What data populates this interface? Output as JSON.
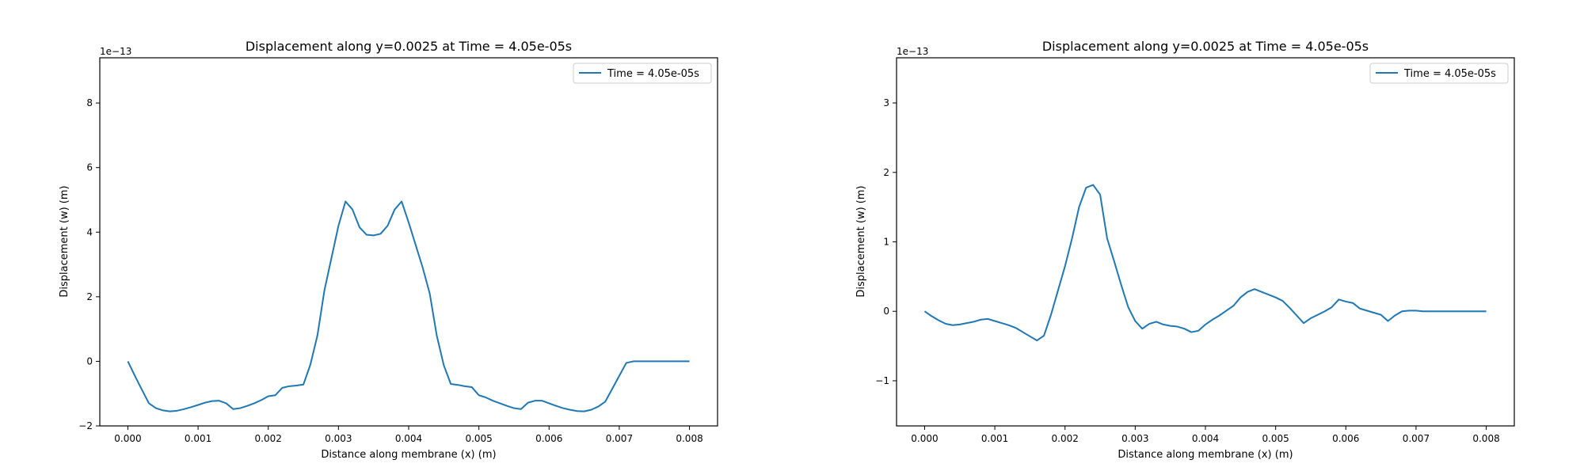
{
  "chart_data": [
    {
      "type": "line",
      "title": "Displacement along y=0.0025 at Time = 4.05e-05s",
      "xlabel": "Distance along membrane (x) (m)",
      "ylabel": "Displacement (w) (m)",
      "y_offset_label": "1e−13",
      "xlim": [
        -0.0004,
        0.0084
      ],
      "ylim": [
        -2.0,
        9.4
      ],
      "xticks": [
        0,
        0.001,
        0.002,
        0.003,
        0.004,
        0.005,
        0.006,
        0.007,
        0.008
      ],
      "xtick_labels": [
        "0.000",
        "0.001",
        "0.002",
        "0.003",
        "0.004",
        "0.005",
        "0.006",
        "0.007",
        "0.008"
      ],
      "yticks": [
        -2,
        0,
        2,
        4,
        6,
        8
      ],
      "ytick_labels": [
        "−2",
        "0",
        "2",
        "4",
        "6",
        "8"
      ],
      "grid": false,
      "legend_position": "top-right",
      "series_color": "#1f77b4",
      "series": [
        {
          "name": "Time = 4.05e-05s",
          "x": [
            0,
            0.0001,
            0.0002,
            0.0003,
            0.0004,
            0.0005,
            0.0006,
            0.0007,
            0.0008,
            0.0009,
            0.001,
            0.0011,
            0.0012,
            0.0013,
            0.0014,
            0.0015,
            0.0016,
            0.0017,
            0.0018,
            0.0019,
            0.002,
            0.0021,
            0.0022,
            0.0023,
            0.0024,
            0.0025,
            0.0026,
            0.0027,
            0.0028,
            0.0029,
            0.003,
            0.0031,
            0.0032,
            0.0033,
            0.0034,
            0.0035,
            0.0036,
            0.0037,
            0.0038,
            0.0039,
            0.004,
            0.0041,
            0.0042,
            0.0043,
            0.0044,
            0.0045,
            0.0046,
            0.0047,
            0.0048,
            0.0049,
            0.005,
            0.0051,
            0.0052,
            0.0053,
            0.0054,
            0.0055,
            0.0056,
            0.0057,
            0.0058,
            0.0059,
            0.006,
            0.0061,
            0.0062,
            0.0063,
            0.0064,
            0.0065,
            0.0066,
            0.0067,
            0.0068,
            0.0069,
            0.007,
            0.0071,
            0.0072,
            0.0073,
            0.0074,
            0.0075,
            0.0076,
            0.0077,
            0.0078,
            0.0079,
            0.008
          ],
          "y": [
            0.0,
            -0.45,
            -0.88,
            -1.3,
            -1.45,
            -1.52,
            -1.55,
            -1.53,
            -1.48,
            -1.42,
            -1.35,
            -1.28,
            -1.23,
            -1.22,
            -1.3,
            -1.48,
            -1.45,
            -1.38,
            -1.3,
            -1.2,
            -1.08,
            -1.05,
            -0.82,
            -0.77,
            -0.75,
            -0.72,
            -0.1,
            0.8,
            2.2,
            3.2,
            4.2,
            4.95,
            4.7,
            4.15,
            3.92,
            3.9,
            3.95,
            4.2,
            4.7,
            4.95,
            4.3,
            3.6,
            2.9,
            2.1,
            0.8,
            -0.12,
            -0.7,
            -0.73,
            -0.77,
            -0.8,
            -1.05,
            -1.12,
            -1.22,
            -1.3,
            -1.38,
            -1.45,
            -1.48,
            -1.28,
            -1.22,
            -1.22,
            -1.3,
            -1.38,
            -1.45,
            -1.5,
            -1.54,
            -1.55,
            -1.5,
            -1.4,
            -1.25,
            -0.85,
            -0.45,
            -0.05,
            0.0,
            0.0,
            0.0,
            0.0,
            0.0,
            0.0,
            0.0,
            0.0,
            0.0
          ]
        }
      ]
    },
    {
      "type": "line",
      "title": "Displacement along y=0.0025 at Time = 4.05e-05s",
      "xlabel": "Distance along membrane (x) (m)",
      "ylabel": "Displacement (w) (m)",
      "y_offset_label": "1e−13",
      "xlim": [
        -0.0004,
        0.0084
      ],
      "ylim": [
        -1.65,
        3.65
      ],
      "xticks": [
        0,
        0.001,
        0.002,
        0.003,
        0.004,
        0.005,
        0.006,
        0.007,
        0.008
      ],
      "xtick_labels": [
        "0.000",
        "0.001",
        "0.002",
        "0.003",
        "0.004",
        "0.005",
        "0.006",
        "0.007",
        "0.008"
      ],
      "yticks": [
        -1,
        0,
        1,
        2,
        3
      ],
      "ytick_labels": [
        "−1",
        "0",
        "1",
        "2",
        "3"
      ],
      "grid": false,
      "legend_position": "top-right",
      "series_color": "#1f77b4",
      "series": [
        {
          "name": "Time = 4.05e-05s",
          "x": [
            0,
            0.0001,
            0.0002,
            0.0003,
            0.0004,
            0.0005,
            0.0006,
            0.0007,
            0.0008,
            0.0009,
            0.001,
            0.0011,
            0.0012,
            0.0013,
            0.0014,
            0.0015,
            0.0016,
            0.0017,
            0.0018,
            0.0019,
            0.002,
            0.0021,
            0.0022,
            0.0023,
            0.0024,
            0.0025,
            0.0026,
            0.0027,
            0.0028,
            0.0029,
            0.003,
            0.0031,
            0.0032,
            0.0033,
            0.0034,
            0.0035,
            0.0036,
            0.0037,
            0.0038,
            0.0039,
            0.004,
            0.0041,
            0.0042,
            0.0043,
            0.0044,
            0.0045,
            0.0046,
            0.0047,
            0.0048,
            0.0049,
            0.005,
            0.0051,
            0.0052,
            0.0053,
            0.0054,
            0.0055,
            0.0056,
            0.0057,
            0.0058,
            0.0059,
            0.006,
            0.0061,
            0.0062,
            0.0063,
            0.0064,
            0.0065,
            0.0066,
            0.0067,
            0.0068,
            0.0069,
            0.007,
            0.0071,
            0.0072,
            0.0073,
            0.0074,
            0.0075,
            0.0076,
            0.0077,
            0.0078,
            0.0079,
            0.008
          ],
          "y": [
            0.0,
            -0.07,
            -0.13,
            -0.18,
            -0.2,
            -0.19,
            -0.17,
            -0.15,
            -0.12,
            -0.11,
            -0.14,
            -0.17,
            -0.2,
            -0.24,
            -0.3,
            -0.36,
            -0.42,
            -0.35,
            -0.05,
            0.3,
            0.65,
            1.05,
            1.5,
            1.78,
            1.82,
            1.68,
            1.05,
            0.72,
            0.38,
            0.06,
            -0.14,
            -0.25,
            -0.18,
            -0.15,
            -0.19,
            -0.21,
            -0.22,
            -0.25,
            -0.3,
            -0.28,
            -0.19,
            -0.12,
            -0.06,
            0.01,
            0.08,
            0.2,
            0.28,
            0.32,
            0.28,
            0.24,
            0.2,
            0.15,
            0.05,
            -0.06,
            -0.17,
            -0.1,
            -0.05,
            0.0,
            0.06,
            0.17,
            0.14,
            0.12,
            0.04,
            0.01,
            -0.02,
            -0.05,
            -0.14,
            -0.06,
            0.0,
            0.01,
            0.01,
            0.0,
            0.0,
            0.0,
            0.0,
            0.0,
            0.0,
            0.0,
            0.0,
            0.0,
            0.0
          ]
        }
      ]
    }
  ]
}
